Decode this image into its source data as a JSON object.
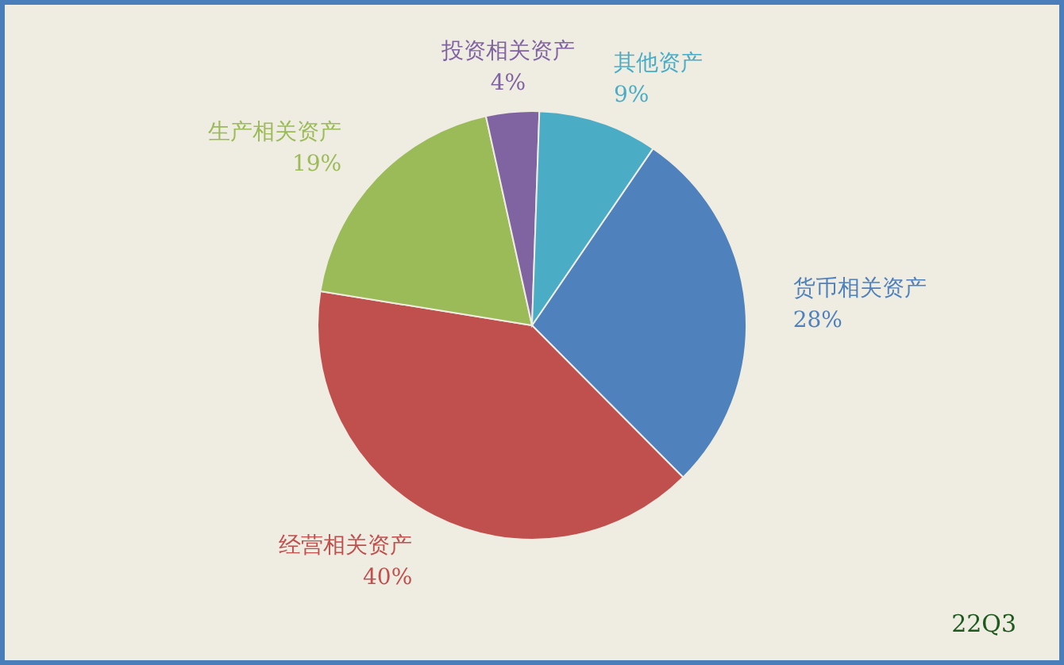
{
  "chart_data": {
    "type": "pie",
    "categories": [
      "货币相关资产",
      "经营相关资产",
      "生产相关资产",
      "投资相关资产",
      "其他资产"
    ],
    "values": [
      28,
      40,
      19,
      4,
      9
    ],
    "colors": [
      "#4f81bd",
      "#c0504d",
      "#9bbb59",
      "#8064a2",
      "#4bacc6"
    ],
    "value_labels": [
      "28%",
      "40%",
      "19%",
      "4%",
      "9%"
    ],
    "annotations": [
      "22Q3"
    ]
  }
}
